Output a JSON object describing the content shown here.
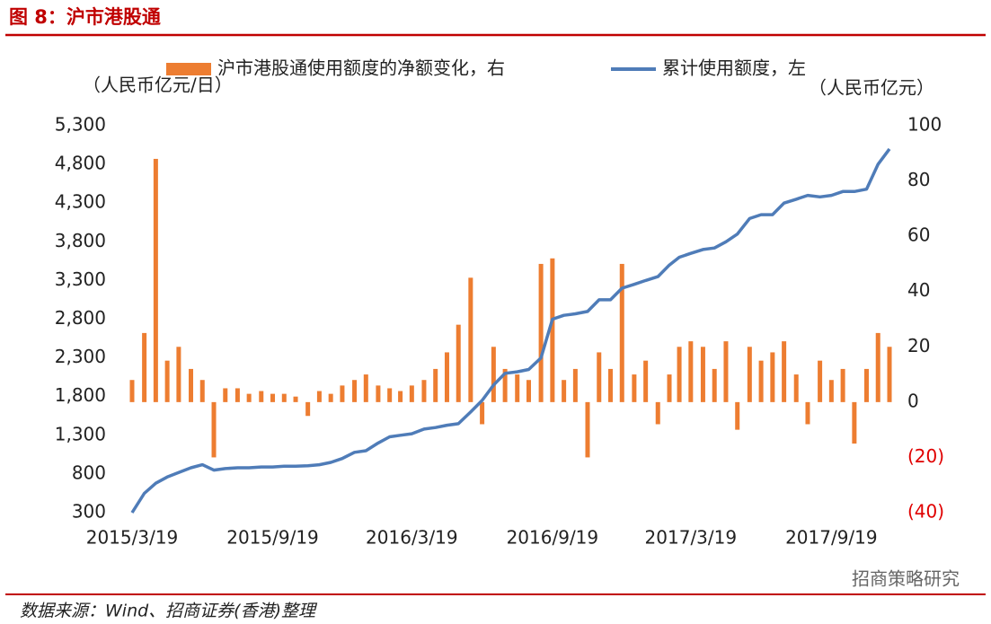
{
  "header": {
    "title": "图 8：沪市港股通"
  },
  "chart_data": {
    "type": "bar-line",
    "y_unit_label": "（人民币亿元/日）",
    "y2_unit_label": "（人民币亿元）",
    "x": [
      "2015/3/19",
      "2015/4/4",
      "2015/4/19",
      "2015/5/4",
      "2015/5/19",
      "2015/6/4",
      "2015/6/19",
      "2015/7/4",
      "2015/7/19",
      "2015/8/4",
      "2015/8/19",
      "2015/9/4",
      "2015/9/19",
      "2015/10/4",
      "2015/10/19",
      "2015/11/4",
      "2015/11/19",
      "2015/12/4",
      "2015/12/19",
      "2016/1/4",
      "2016/1/19",
      "2016/2/4",
      "2016/2/19",
      "2016/3/4",
      "2016/3/19",
      "2016/4/4",
      "2016/4/19",
      "2016/5/4",
      "2016/5/19",
      "2016/6/4",
      "2016/6/19",
      "2016/7/4",
      "2016/7/19",
      "2016/8/4",
      "2016/8/19",
      "2016/9/4",
      "2016/9/19",
      "2016/10/4",
      "2016/10/19",
      "2016/11/4",
      "2016/11/19",
      "2016/12/4",
      "2016/12/19",
      "2017/1/4",
      "2017/1/19",
      "2017/2/4",
      "2017/2/19",
      "2017/3/4",
      "2017/3/19",
      "2017/4/4",
      "2017/4/19",
      "2017/5/4",
      "2017/5/19",
      "2017/6/4",
      "2017/6/19",
      "2017/7/4",
      "2017/7/19",
      "2017/8/4",
      "2017/8/19",
      "2017/9/4",
      "2017/9/19",
      "2017/10/4",
      "2017/10/19",
      "2017/11/4",
      "2017/11/19",
      "2017/12/4"
    ],
    "series": [
      {
        "name": "沪市港股通使用额度的净额变化，右",
        "type": "bar",
        "axis": "y2",
        "color": "#ed7d31",
        "values": [
          8,
          25,
          88,
          15,
          20,
          12,
          8,
          -20,
          5,
          5,
          3,
          4,
          3,
          3,
          2,
          -5,
          4,
          3,
          6,
          8,
          10,
          6,
          5,
          4,
          6,
          8,
          12,
          18,
          28,
          45,
          -8,
          20,
          12,
          10,
          8,
          50,
          52,
          8,
          12,
          -20,
          18,
          12,
          50,
          10,
          15,
          -8,
          10,
          20,
          22,
          20,
          12,
          22,
          -10,
          20,
          15,
          18,
          22,
          10,
          -8,
          15,
          8,
          12,
          -15,
          12,
          25,
          20
        ]
      },
      {
        "name": "累计使用额度，左",
        "type": "line",
        "color": "#4f7cb8",
        "values": [
          300,
          550,
          680,
          760,
          820,
          880,
          920,
          850,
          870,
          880,
          880,
          890,
          890,
          900,
          900,
          905,
          920,
          950,
          1000,
          1080,
          1100,
          1200,
          1280,
          1300,
          1320,
          1380,
          1400,
          1430,
          1450,
          1600,
          1750,
          1950,
          2100,
          2120,
          2150,
          2300,
          2800,
          2850,
          2870,
          2900,
          3050,
          3050,
          3200,
          3250,
          3300,
          3350,
          3500,
          3600,
          3650,
          3700,
          3720,
          3800,
          3900,
          4100,
          4150,
          4150,
          4300,
          4350,
          4400,
          4380,
          4400,
          4450,
          4450,
          4480,
          4800,
          5000
        ]
      }
    ],
    "xlim": [
      "2015/3/19",
      "2017/12/4"
    ],
    "xticks": [
      "2015/3/19",
      "2015/9/19",
      "2016/3/19",
      "2016/9/19",
      "2017/3/19",
      "2017/9/19"
    ],
    "ylim": [
      300,
      5300
    ],
    "yticks": [
      300,
      800,
      {
        "value": 1300,
        "label": "1,300"
      },
      {
        "value": 1800,
        "label": "1,800"
      },
      {
        "value": 2300,
        "label": "2,300"
      },
      {
        "value": 2800,
        "label": "2,800"
      },
      {
        "value": 3300,
        "label": "3,300"
      },
      {
        "value": 3800,
        "label": "3,800"
      },
      {
        "value": 4300,
        "label": "4,300"
      },
      {
        "value": 4800,
        "label": "4,800"
      },
      {
        "value": 5300,
        "label": "5,300"
      }
    ],
    "y2lim": [
      -40,
      100
    ],
    "y2ticks": [
      {
        "value": -40,
        "label": "(40)"
      },
      {
        "value": -20,
        "label": "(20)"
      },
      0,
      20,
      40,
      60,
      80,
      100
    ],
    "y2_negative_tick_color": "#e00000",
    "grid": false
  },
  "footer": {
    "source": "数据来源：Wind、招商证券(香港)整理",
    "watermark": "招商策略研究"
  }
}
